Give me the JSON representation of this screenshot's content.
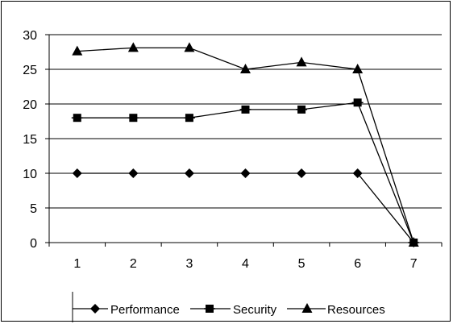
{
  "chart_data": {
    "type": "line",
    "title": "",
    "xlabel": "",
    "ylabel": "",
    "x": [
      1,
      2,
      3,
      4,
      5,
      6,
      7
    ],
    "ylim": [
      0,
      30
    ],
    "yticks": [
      0,
      5,
      10,
      15,
      20,
      25,
      30
    ],
    "grid": "horizontal",
    "legend_position": "bottom",
    "series": [
      {
        "name": "Performance",
        "marker": "diamond",
        "values": [
          10,
          10,
          10,
          10,
          10,
          10,
          0
        ]
      },
      {
        "name": "Security",
        "marker": "square",
        "values": [
          18,
          18,
          18,
          19.2,
          19.2,
          20.2,
          0
        ]
      },
      {
        "name": "Resources",
        "marker": "triangle",
        "values": [
          27.6,
          28.1,
          28.1,
          25,
          26,
          25,
          0
        ]
      }
    ],
    "colors": {
      "line": "#000000",
      "grid": "#000000",
      "background": "#ffffff"
    }
  }
}
